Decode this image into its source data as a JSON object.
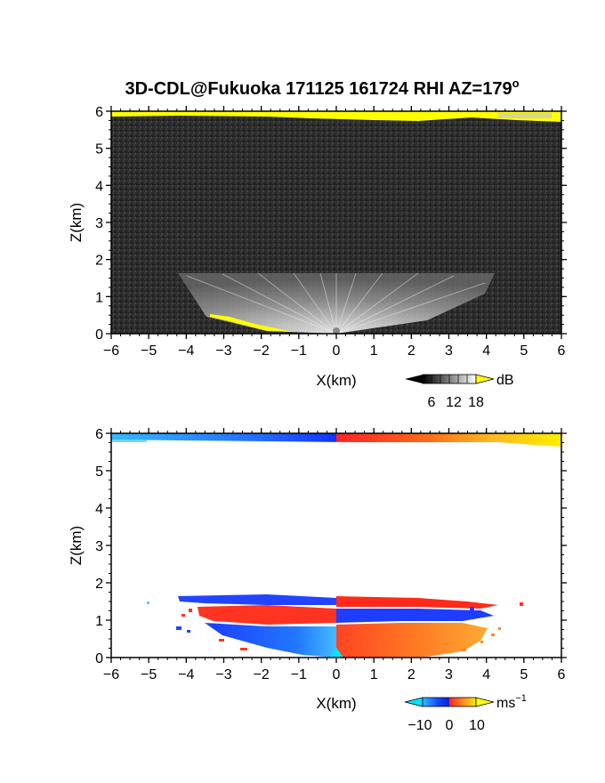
{
  "chart_data": [
    {
      "type": "heatmap",
      "title": "3D-CDL@Fukuoka 171125 161724 RHI AZ=179",
      "title_superscript": "o",
      "xlabel": "X(km)",
      "ylabel": "Z(km)",
      "xlim": [
        -6,
        6
      ],
      "ylim": [
        0,
        6
      ],
      "x_ticks": [
        -6,
        -5,
        -4,
        -3,
        -2,
        -1,
        0,
        1,
        2,
        3,
        4,
        5,
        6
      ],
      "y_ticks": [
        0,
        1,
        2,
        3,
        4,
        5,
        6
      ],
      "colorbar": {
        "unit": "dB",
        "unit_superscript": "",
        "ticks": [
          6,
          12,
          18
        ],
        "tick_labels": [
          "6",
          "12",
          "18"
        ],
        "colormap": "grayscale",
        "over_color": "#ffff00"
      }
    },
    {
      "type": "heatmap",
      "title": "",
      "xlabel": "X(km)",
      "ylabel": "Z(km)",
      "xlim": [
        -6,
        6
      ],
      "ylim": [
        0,
        6
      ],
      "x_ticks": [
        -6,
        -5,
        -4,
        -3,
        -2,
        -1,
        0,
        1,
        2,
        3,
        4,
        5,
        6
      ],
      "y_ticks": [
        0,
        1,
        2,
        3,
        4,
        5,
        6
      ],
      "colorbar": {
        "unit": "ms",
        "unit_superscript": "−1",
        "ticks": [
          -10,
          0,
          10
        ],
        "tick_labels": [
          "−10",
          "0",
          "10"
        ],
        "colormap": "blue-red-yellow diverging",
        "under_color": "#00e5ff",
        "over_color": "#ffff00"
      }
    }
  ]
}
